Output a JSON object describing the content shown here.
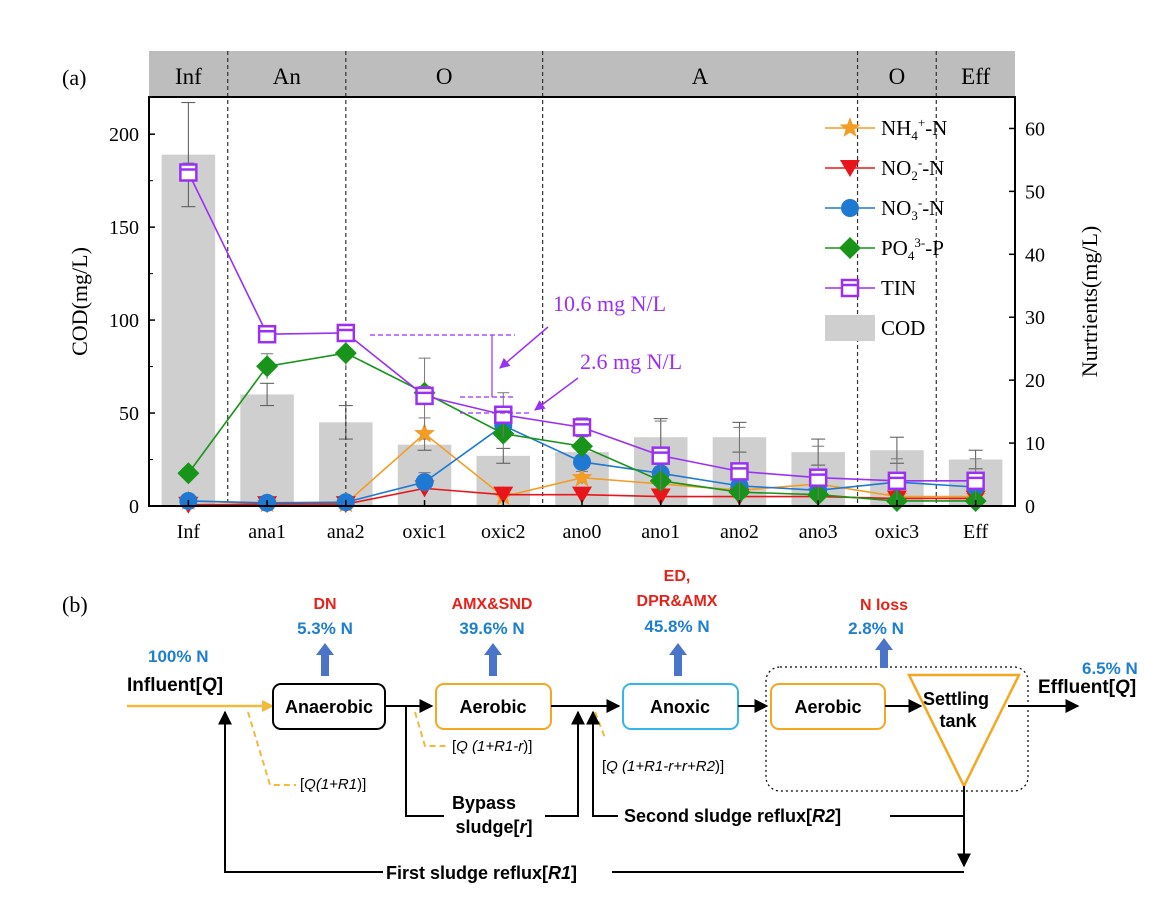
{
  "panel_a": {
    "label": "(a)",
    "zones": [
      {
        "name": "Inf",
        "from": -0.5,
        "to": 0.5
      },
      {
        "name": "An",
        "from": 0.5,
        "to": 2.0
      },
      {
        "name": "O",
        "from": 2.0,
        "to": 4.5
      },
      {
        "name": "A",
        "from": 4.5,
        "to": 8.5
      },
      {
        "name": "O",
        "from": 8.5,
        "to": 9.5
      },
      {
        "name": "Eff",
        "from": 9.5,
        "to": 10.5
      }
    ],
    "annotation_1": "10.6 mg N/L",
    "annotation_2": "2.6 mg N/L"
  },
  "chart_data": {
    "type": "bar+line",
    "categories": [
      "Inf",
      "ana1",
      "ana2",
      "oxic1",
      "oxic2",
      "ano0",
      "ano1",
      "ano2",
      "ano3",
      "oxic3",
      "Eff"
    ],
    "ylabel": "COD(mg/L)",
    "y2label": "Nurtrients(mg/L)",
    "ylim": [
      0,
      220
    ],
    "y2lim": [
      0,
      65
    ],
    "yticks": [
      0,
      50,
      100,
      150,
      200
    ],
    "y2ticks": [
      0,
      10,
      20,
      30,
      40,
      50,
      60
    ],
    "cod": {
      "name": "COD",
      "values": [
        189,
        60,
        45,
        33,
        27,
        29,
        37,
        37,
        29,
        30,
        25
      ],
      "errors": [
        28,
        6,
        9,
        3,
        4,
        4,
        10,
        8,
        7,
        7,
        5
      ],
      "color": "#cfcfcf"
    },
    "series": [
      {
        "key": "nh4",
        "name": "NH",
        "sub": "4",
        "sup": "+",
        "suffix": "-N",
        "marker": "star",
        "color": "#f39c26",
        "values": [
          0.8,
          0.4,
          0.4,
          11.5,
          1.5,
          4.5,
          3.5,
          2.5,
          3.5,
          1.5,
          1.5
        ],
        "errors": [
          0.3,
          0.2,
          0.2,
          2.5,
          1.0,
          1.0,
          1.0,
          1.0,
          1.0,
          0.5,
          0.5
        ]
      },
      {
        "key": "no2",
        "name": "NO",
        "sub": "2",
        "sup": "-",
        "suffix": "-N",
        "marker": "tri",
        "color": "#e8161b",
        "values": [
          0.2,
          0.3,
          0.3,
          2.8,
          1.8,
          1.8,
          1.5,
          1.5,
          1.5,
          1.2,
          1.2
        ],
        "errors": [
          0.1,
          0.1,
          0.1,
          0.6,
          0.4,
          0.4,
          0.3,
          0.3,
          0.3,
          0.3,
          0.3
        ]
      },
      {
        "key": "no3",
        "name": "NO",
        "sub": "3",
        "sup": "-",
        "suffix": "-N",
        "marker": "circle",
        "color": "#1f78d1",
        "values": [
          0.8,
          0.5,
          0.6,
          3.8,
          12.8,
          7.0,
          5.2,
          3.2,
          2.5,
          3.8,
          3.0
        ],
        "errors": [
          0.3,
          0.2,
          0.2,
          1.5,
          1.5,
          1.0,
          1.0,
          0.8,
          0.6,
          0.8,
          0.6
        ]
      },
      {
        "key": "po4",
        "name": "PO",
        "sub": "4",
        "sup": "3-",
        "suffix": "-P",
        "marker": "diamond",
        "color": "#19941a",
        "values": [
          5.2,
          22.2,
          24.3,
          18.0,
          11.5,
          9.5,
          4.0,
          2.2,
          1.8,
          0.8,
          0.8
        ],
        "errors": [
          0.8,
          2.0,
          2.5,
          5.5,
          2.5,
          1.5,
          1.0,
          0.8,
          0.6,
          0.4,
          0.4
        ]
      },
      {
        "key": "tin",
        "name": "TIN",
        "sub": "",
        "sup": "",
        "suffix": "",
        "marker": "square",
        "color": "#9b30f5",
        "values": [
          53.0,
          27.3,
          27.5,
          17.5,
          14.5,
          12.5,
          8.0,
          5.5,
          4.5,
          4.0,
          4.0
        ],
        "errors": [
          1.5,
          1.0,
          1.0,
          1.5,
          3.5,
          1.5,
          5.5,
          7.0,
          5.0,
          3.5,
          3.5
        ]
      }
    ]
  },
  "panel_b": {
    "label": "(b)",
    "influent_pct": "100% N",
    "influent_label": "Influent[",
    "influent_q": "Q",
    "effluent_pct": "6.5% N",
    "effluent_label": "Effluent[",
    "effluent_q": "Q",
    "process_1": {
      "name": "DN",
      "pct": "5.3% N"
    },
    "process_2": {
      "name": "AMX&SND",
      "pct": "39.6% N"
    },
    "process_3": {
      "name_line1": "ED,",
      "name_line2": "DPR&AMX",
      "pct": "45.8% N"
    },
    "process_4": {
      "name": "N loss",
      "pct": "2.8% N"
    },
    "box_anaerobic": "Anaerobic",
    "box_aerobic_1": "Aerobic",
    "box_anoxic": "Anoxic",
    "box_aerobic_2": "Aerobic",
    "box_settling_line1": "Settling",
    "box_settling_line2": "tank",
    "flow_1_a": "[",
    "flow_1_b": "Q(1+R1",
    "flow_1_c": ")]",
    "flow_2_a": "[",
    "flow_2_b": "Q (1+R1-r",
    "flow_2_c": ")]",
    "flow_3_a": "[",
    "flow_3_b": "Q (1+R1-r+r+R2",
    "flow_3_c": ")]",
    "bypass_line1": "Bypass",
    "bypass_line2_a": "sludge[",
    "bypass_line2_b": "r",
    "bypass_line2_c": "]",
    "reflux_2_a": "Second sludge reflux[",
    "reflux_2_b": "R2",
    "reflux_2_c": "]",
    "reflux_1_a": "First sludge reflux[",
    "reflux_1_b": "R1",
    "reflux_1_c": "]"
  },
  "colors": {
    "orange": "#f5a623",
    "flow_orange": "#f3b93b",
    "red": "#e5231b",
    "blue": "#1e7fd0",
    "arrow_blue": "#4a74c9",
    "anoxic_border": "#35b6ea",
    "purple": "#9b30f5"
  }
}
